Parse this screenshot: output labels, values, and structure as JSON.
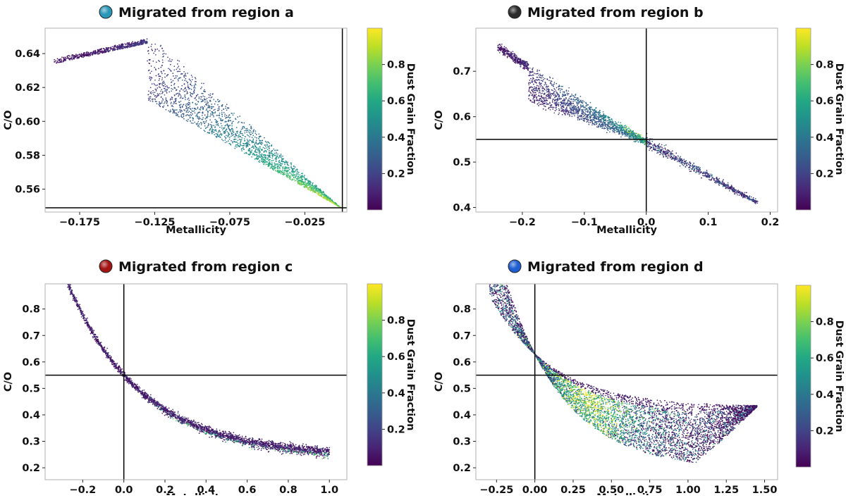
{
  "chart_data": [
    {
      "type": "scatter",
      "title": "Migrated from region  a",
      "marker_color": "#2a97b8",
      "xlabel": "Metallicity",
      "ylabel": "C/O",
      "xlim": [
        -0.198,
        0.003
      ],
      "ylim": [
        0.5465,
        0.655
      ],
      "xticks": [
        -0.175,
        -0.125,
        -0.075,
        -0.025
      ],
      "xtick_labels": [
        "−0.175",
        "−0.125",
        "−0.075",
        "−0.025"
      ],
      "yticks": [
        0.56,
        0.58,
        0.6,
        0.62,
        0.64
      ],
      "ytick_labels": [
        "0.56",
        "0.58",
        "0.60",
        "0.62",
        "0.64"
      ],
      "ref_lines": {
        "x": 0.0,
        "y": 0.549
      },
      "colorbar": {
        "label": "Dust Grain Fraction",
        "ticks": [
          0.2,
          0.4,
          0.6,
          0.8
        ],
        "tick_labels": [
          "0.2",
          "0.4",
          "0.6",
          "0.8"
        ],
        "range": [
          0.0,
          1.0
        ]
      },
      "regions": [
        {
          "shape": "wedge",
          "apex": [
            -0.001,
            0.549
          ],
          "top_start": [
            -0.192,
            0.637
          ],
          "top_apex": [
            -0.125,
            0.65
          ],
          "low_start": [
            -0.13,
            0.613
          ],
          "count": 2600,
          "density": "higher near top",
          "color_trend": "low (purple) at upper-left, high (yellow) near apex"
        }
      ]
    },
    {
      "type": "scatter",
      "title": "Migrated from region  b",
      "marker_color": "#2b2b2b",
      "xlabel": "Metallicity",
      "ylabel": "C/O",
      "xlim": [
        -0.275,
        0.212
      ],
      "ylim": [
        0.39,
        0.795
      ],
      "xticks": [
        -0.2,
        -0.1,
        0.0,
        0.1,
        0.2
      ],
      "xtick_labels": [
        "−0.2",
        "−0.1",
        "0.0",
        "0.1",
        "0.2"
      ],
      "yticks": [
        0.4,
        0.5,
        0.6,
        0.7
      ],
      "ytick_labels": [
        "0.4",
        "0.5",
        "0.6",
        "0.7"
      ],
      "ref_lines": {
        "x": 0.0,
        "y": 0.55
      },
      "colorbar": {
        "label": "Dust Grain Fraction",
        "ticks": [
          0.2,
          0.4,
          0.6,
          0.8
        ],
        "tick_labels": [
          "0.2",
          "0.4",
          "0.6",
          "0.8"
        ],
        "range": [
          0.0,
          1.0
        ]
      },
      "regions": [
        {
          "shape": "wedge",
          "apex": [
            0.0,
            0.545
          ],
          "top_start": [
            -0.24,
            0.76
          ],
          "low_start": [
            -0.19,
            0.635
          ],
          "count": 1900,
          "color_trend": "purple at left, teal to green near crossing"
        },
        {
          "shape": "band",
          "from": [
            0.0,
            0.545
          ],
          "to": [
            0.18,
            0.41
          ],
          "count": 700,
          "color_trend": "mostly purple/blue"
        }
      ]
    },
    {
      "type": "scatter",
      "title": "Migrated from region  c",
      "marker_color": "#a31515",
      "xlabel": "Metallicity",
      "ylabel": "C/O",
      "xlim": [
        -0.383,
        1.085
      ],
      "ylim": [
        0.155,
        0.895
      ],
      "xticks": [
        -0.2,
        0.0,
        0.2,
        0.4,
        0.6,
        0.8,
        1.0
      ],
      "xtick_labels": [
        "−0.2",
        "0.0",
        "0.2",
        "0.4",
        "0.6",
        "0.8",
        "1.0"
      ],
      "yticks": [
        0.2,
        0.3,
        0.4,
        0.5,
        0.6,
        0.7,
        0.8
      ],
      "ytick_labels": [
        "0.2",
        "0.3",
        "0.4",
        "0.5",
        "0.6",
        "0.7",
        "0.8"
      ],
      "ref_lines": {
        "x": 0.0,
        "y": 0.55
      },
      "colorbar": {
        "label": "Dust Grain Fraction",
        "ticks": [
          0.2,
          0.4,
          0.6,
          0.8
        ],
        "tick_labels": [
          "0.2",
          "0.4",
          "0.6",
          "0.8"
        ],
        "range": [
          0.0,
          1.0
        ]
      },
      "regions": [
        {
          "shape": "curve",
          "curve": "y = 0.24 + 0.31*exp(-2.75*x)",
          "x_range": [
            -0.3,
            1.0
          ],
          "count": 2800,
          "color_trend": "mostly purple, some teal/green below 0.4"
        }
      ]
    },
    {
      "type": "scatter",
      "title": "Migrated from region  d",
      "marker_color": "#1f5fd1",
      "xlabel": "Metallicity",
      "ylabel": "C/O",
      "xlim": [
        -0.385,
        1.585
      ],
      "ylim": [
        0.155,
        0.895
      ],
      "xticks": [
        -0.25,
        0.0,
        0.25,
        0.5,
        0.75,
        1.0,
        1.25,
        1.5
      ],
      "xtick_labels": [
        "−0.25",
        "0.00",
        "0.25",
        "0.50",
        "0.75",
        "1.00",
        "1.25",
        "1.50"
      ],
      "yticks": [
        0.2,
        0.3,
        0.4,
        0.5,
        0.6,
        0.7,
        0.8
      ],
      "ytick_labels": [
        "0.2",
        "0.3",
        "0.4",
        "0.5",
        "0.6",
        "0.7",
        "0.8"
      ],
      "ref_lines": {
        "x": 0.0,
        "y": 0.55
      },
      "colorbar": {
        "label": "Dust Grain Fraction",
        "ticks": [
          0.2,
          0.4,
          0.6,
          0.8
        ],
        "tick_labels": [
          "0.2",
          "0.4",
          "0.6",
          "0.8"
        ],
        "range": [
          0.0,
          1.0
        ]
      },
      "regions": [
        {
          "shape": "fan",
          "upper_curve": "y = 0.43 + 0.2*exp(-2.5*x)",
          "lower_curve": "y = 0.19 + 0.44*exp(-2.6*x)",
          "x_range": [
            -0.3,
            1.45
          ],
          "apex": [
            1.45,
            0.43
          ],
          "count": 6000,
          "color_trend": "yellow/green band near x 0.1-0.5, purple at upper edge and lower right"
        }
      ]
    }
  ]
}
